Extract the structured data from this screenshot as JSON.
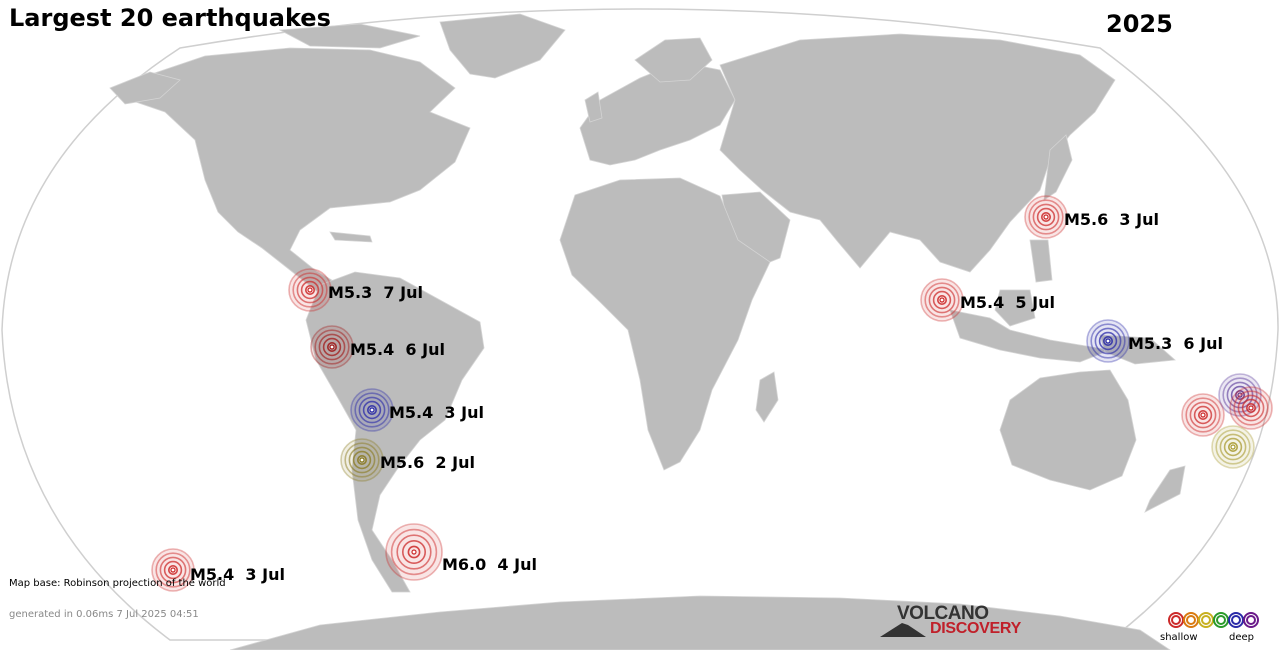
{
  "header": {
    "title": "Largest 20 earthquakes",
    "year": "2025"
  },
  "quakes": [
    {
      "label": "M5.6  3 Jul",
      "color": "#cc2a2a",
      "depth": "shallow"
    },
    {
      "label": "M5.3  7 Jul",
      "color": "#cc2a2a",
      "depth": "shallow"
    },
    {
      "label": "M5.4  5 Jul",
      "color": "#cc2a2a",
      "depth": "shallow"
    },
    {
      "label": "M5.4  6 Jul",
      "color": "#a01818",
      "depth": "shallow"
    },
    {
      "label": "M5.3  6 Jul",
      "color": "#2a2aa8",
      "depth": "deep"
    },
    {
      "label": "M5.4  3 Jul",
      "color": "#2a2aa8",
      "depth": "deep"
    },
    {
      "label": "M5.6  2 Jul",
      "color": "#8a7a20",
      "depth": "intermediate"
    },
    {
      "label": "M6.0  4 Jul",
      "color": "#cc2a2a",
      "depth": "shallow"
    },
    {
      "label": "M5.4  3 Jul",
      "color": "#cc2a2a",
      "depth": "shallow"
    }
  ],
  "unlabeled_quakes": [
    {
      "color": "#cc2a2a"
    },
    {
      "color": "#5a3a9a"
    },
    {
      "color": "#cc2a2a"
    },
    {
      "color": "#a89a30"
    }
  ],
  "footer": {
    "map_credit": "Map base: Robinson projection of the world",
    "generated": "generated in 0.06ms  7 Jul 2025 04:51"
  },
  "logo": {
    "top": "VOLCANO",
    "bottom": "DISCOVERY"
  },
  "legend": {
    "shallow_label": "shallow",
    "deep_label": "deep",
    "colors": [
      "#cc2a2a",
      "#d97a10",
      "#c8b020",
      "#2a9a2a",
      "#2a2aa8",
      "#6a1a8a"
    ]
  },
  "colors": {
    "land": "#bcbcbc",
    "ocean": "#ffffff",
    "outline": "#c8c8c8"
  }
}
